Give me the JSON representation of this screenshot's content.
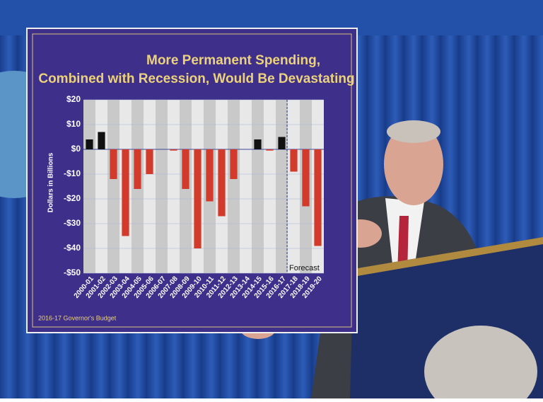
{
  "chart_data": {
    "type": "bar",
    "title": "More Permanent Spending,",
    "subtitle": "Combined with Recession, Would Be Devastating",
    "y_label": "Dollars in Billions",
    "footer": "2016-17 Governor's Budget",
    "annotation": "Forecast",
    "categories": [
      "2000-01",
      "2001-02",
      "2002-03",
      "2003-04",
      "2004-05",
      "2005-06",
      "2006-07",
      "2007-08",
      "2008-09",
      "2009-10",
      "2010-11",
      "2011-12",
      "2012-13",
      "2013-14",
      "2014-15",
      "2015-16",
      "2016-17",
      "2017-18",
      "2018-19",
      "2019-20"
    ],
    "values": [
      4,
      7,
      -12,
      -35,
      -16,
      -10,
      0,
      -0.5,
      -16,
      -40,
      -21,
      -27,
      -12,
      0,
      4,
      -0.5,
      5,
      -9,
      -23,
      -39
    ],
    "positive_color": "#111111",
    "negative_color": "#d23a2c",
    "ylim": [
      -50,
      20
    ],
    "yticks": [
      {
        "value": -50,
        "label": "-$50"
      },
      {
        "value": -40,
        "label": "-$40"
      },
      {
        "value": -30,
        "label": "-$30"
      },
      {
        "value": -20,
        "label": "-$20"
      },
      {
        "value": -10,
        "label": "-$10"
      },
      {
        "value": 0,
        "label": "$0"
      },
      {
        "value": 10,
        "label": "$10"
      },
      {
        "value": 20,
        "label": "$20"
      }
    ],
    "grid": true
  }
}
